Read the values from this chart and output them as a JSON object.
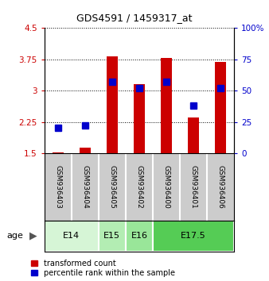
{
  "title": "GDS4591 / 1459317_at",
  "samples": [
    "GSM936403",
    "GSM936404",
    "GSM936405",
    "GSM936402",
    "GSM936400",
    "GSM936401",
    "GSM936406"
  ],
  "red_values": [
    1.52,
    1.63,
    3.82,
    3.15,
    3.78,
    2.35,
    3.68
  ],
  "blue_values": [
    20,
    22,
    57,
    52,
    57,
    38,
    52
  ],
  "age_groups": [
    {
      "label": "E14",
      "start": 0,
      "end": 2,
      "color": "#d6f5d6"
    },
    {
      "label": "E15",
      "start": 2,
      "end": 3,
      "color": "#b3edb3"
    },
    {
      "label": "E16",
      "start": 3,
      "end": 4,
      "color": "#99e699"
    },
    {
      "label": "E17.5",
      "start": 4,
      "end": 7,
      "color": "#55cc55"
    }
  ],
  "ylim_left": [
    1.5,
    4.5
  ],
  "ylim_right": [
    0,
    100
  ],
  "yticks_left": [
    1.5,
    2.25,
    3.0,
    3.75,
    4.5
  ],
  "yticks_right": [
    0,
    25,
    50,
    75,
    100
  ],
  "ytick_labels_left": [
    "1.5",
    "2.25",
    "3",
    "3.75",
    "4.5"
  ],
  "ytick_labels_right": [
    "0",
    "25",
    "50",
    "75",
    "100%"
  ],
  "bar_width": 0.4,
  "blue_marker_size": 6,
  "red_color": "#cc0000",
  "blue_color": "#0000cc",
  "sample_bg": "#cccccc",
  "white": "#ffffff"
}
